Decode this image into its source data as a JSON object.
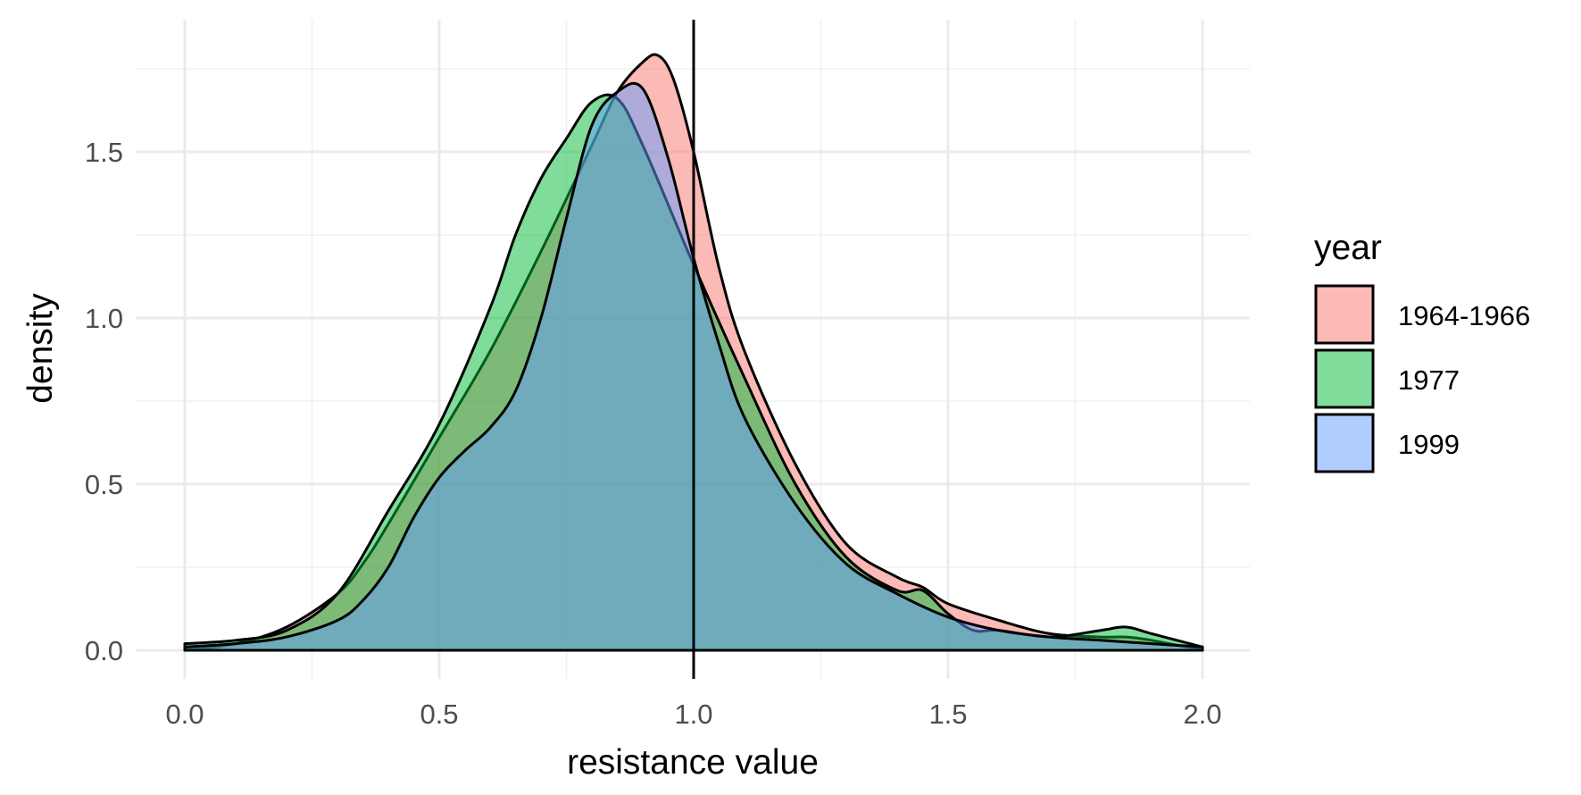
{
  "chart_data": {
    "type": "area",
    "subtype": "density",
    "xlabel": "resistance value",
    "ylabel": "density",
    "xlim": [
      0.0,
      2.0
    ],
    "ylim": [
      0.0,
      1.8
    ],
    "x_ticks": [
      "0.0",
      "0.5",
      "1.0",
      "1.5",
      "2.0"
    ],
    "y_ticks": [
      "0.0",
      "0.5",
      "1.0",
      "1.5"
    ],
    "grid": true,
    "legend": {
      "title": "year",
      "placement": "right"
    },
    "reference_line": {
      "orientation": "vertical",
      "x": 1.0,
      "color": "#000000"
    },
    "series": [
      {
        "name": "1964-1966",
        "color": "#F8766D",
        "opacity": 0.5,
        "x": [
          0.0,
          0.1,
          0.2,
          0.3,
          0.35,
          0.4,
          0.5,
          0.6,
          0.7,
          0.8,
          0.85,
          0.9,
          0.93,
          0.96,
          1.0,
          1.05,
          1.1,
          1.2,
          1.3,
          1.4,
          1.45,
          1.5,
          1.6,
          1.7,
          1.8,
          1.85,
          1.9,
          2.0
        ],
        "y": [
          0.0,
          0.02,
          0.07,
          0.17,
          0.26,
          0.38,
          0.64,
          0.9,
          1.2,
          1.52,
          1.68,
          1.77,
          1.79,
          1.72,
          1.5,
          1.15,
          0.9,
          0.56,
          0.32,
          0.22,
          0.19,
          0.14,
          0.09,
          0.05,
          0.04,
          0.04,
          0.03,
          0.0
        ]
      },
      {
        "name": "1977",
        "color": "#00BA38",
        "opacity": 0.5,
        "x": [
          0.0,
          0.1,
          0.2,
          0.3,
          0.4,
          0.5,
          0.6,
          0.65,
          0.7,
          0.75,
          0.8,
          0.85,
          0.9,
          1.0,
          1.1,
          1.2,
          1.3,
          1.4,
          1.45,
          1.5,
          1.55,
          1.6,
          1.7,
          1.8,
          1.85,
          1.9,
          2.0
        ],
        "y": [
          0.02,
          0.03,
          0.06,
          0.17,
          0.42,
          0.68,
          1.03,
          1.25,
          1.42,
          1.54,
          1.65,
          1.66,
          1.52,
          1.16,
          0.82,
          0.5,
          0.28,
          0.18,
          0.18,
          0.11,
          0.06,
          0.06,
          0.04,
          0.06,
          0.07,
          0.05,
          0.01
        ]
      },
      {
        "name": "1999",
        "color": "#619CFF",
        "opacity": 0.5,
        "x": [
          0.0,
          0.1,
          0.2,
          0.3,
          0.35,
          0.4,
          0.45,
          0.5,
          0.55,
          0.6,
          0.65,
          0.7,
          0.75,
          0.8,
          0.85,
          0.9,
          0.95,
          1.0,
          1.05,
          1.1,
          1.2,
          1.3,
          1.4,
          1.5,
          1.6,
          1.7,
          1.8,
          1.9,
          2.0
        ],
        "y": [
          0.01,
          0.02,
          0.04,
          0.09,
          0.15,
          0.25,
          0.4,
          0.52,
          0.6,
          0.67,
          0.78,
          1.0,
          1.3,
          1.58,
          1.68,
          1.69,
          1.48,
          1.18,
          0.92,
          0.7,
          0.44,
          0.26,
          0.17,
          0.1,
          0.06,
          0.04,
          0.03,
          0.02,
          0.01
        ]
      }
    ]
  }
}
